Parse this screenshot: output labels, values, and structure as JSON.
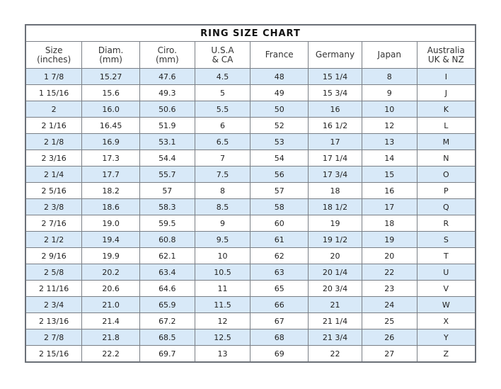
{
  "title": "RING SIZE CHART",
  "columns": [
    "Size\n(inches)",
    "Diam.\n(mm)",
    "Ciro.\n(mm)",
    "U.S.A\n& CA",
    "France",
    "Germany",
    "Japan",
    "Australia\nUK & NZ"
  ],
  "highlight_color": "#d8e9f8",
  "rows": [
    [
      "1 7/8",
      "15.27",
      "47.6",
      "4.5",
      "48",
      "15 1/4",
      "8",
      "I"
    ],
    [
      "1 15/16",
      "15.6",
      "49.3",
      "5",
      "49",
      "15 3/4",
      "9",
      "J"
    ],
    [
      "2",
      "16.0",
      "50.6",
      "5.5",
      "50",
      "16",
      "10",
      "K"
    ],
    [
      "2 1/16",
      "16.45",
      "51.9",
      "6",
      "52",
      "16 1/2",
      "12",
      "L"
    ],
    [
      "2 1/8",
      "16.9",
      "53.1",
      "6.5",
      "53",
      "17",
      "13",
      "M"
    ],
    [
      "2 3/16",
      "17.3",
      "54.4",
      "7",
      "54",
      "17 1/4",
      "14",
      "N"
    ],
    [
      "2 1/4",
      "17.7",
      "55.7",
      "7.5",
      "56",
      "17 3/4",
      "15",
      "O"
    ],
    [
      "2 5/16",
      "18.2",
      "57",
      "8",
      "57",
      "18",
      "16",
      "P"
    ],
    [
      "2 3/8",
      "18.6",
      "58.3",
      "8.5",
      "58",
      "18 1/2",
      "17",
      "Q"
    ],
    [
      "2 7/16",
      "19.0",
      "59.5",
      "9",
      "60",
      "19",
      "18",
      "R"
    ],
    [
      "2 1/2",
      "19.4",
      "60.8",
      "9.5",
      "61",
      "19 1/2",
      "19",
      "S"
    ],
    [
      "2 9/16",
      "19.9",
      "62.1",
      "10",
      "62",
      "20",
      "20",
      "T"
    ],
    [
      "2 5/8",
      "20.2",
      "63.4",
      "10.5",
      "63",
      "20 1/4",
      "22",
      "U"
    ],
    [
      "2 11/16",
      "20.6",
      "64.6",
      "11",
      "65",
      "20 3/4",
      "23",
      "V"
    ],
    [
      "2 3/4",
      "21.0",
      "65.9",
      "11.5",
      "66",
      "21",
      "24",
      "W"
    ],
    [
      "2 13/16",
      "21.4",
      "67.2",
      "12",
      "67",
      "21 1/4",
      "25",
      "X"
    ],
    [
      "2 7/8",
      "21.8",
      "68.5",
      "12.5",
      "68",
      "21 3/4",
      "26",
      "Y"
    ],
    [
      "2 15/16",
      "22.2",
      "69.7",
      "13",
      "69",
      "22",
      "27",
      "Z"
    ]
  ]
}
